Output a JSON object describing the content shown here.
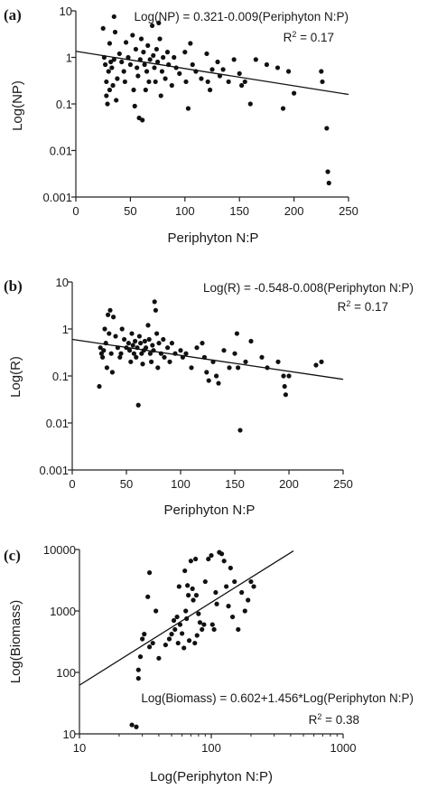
{
  "chart_data": [
    {
      "panel": "(a)",
      "type": "scatter",
      "xlabel": "Periphyton N:P",
      "ylabel": "Log(NP)",
      "xscale": "linear",
      "yscale": "log",
      "xlim": [
        0,
        250
      ],
      "ylim": [
        0.001,
        10
      ],
      "xticks": [
        "0",
        "50",
        "100",
        "150",
        "200",
        "250"
      ],
      "xtick_values": [
        0,
        50,
        100,
        150,
        200,
        250
      ],
      "yticks": [
        "0.001",
        "0.01",
        "0.1",
        "1",
        "10"
      ],
      "ytick_values": [
        0.001,
        0.01,
        0.1,
        1,
        10
      ],
      "equation": "Log(NP) = 0.321-0.009(Periphyton N:P)",
      "r2_prefix": "R",
      "r2_sup": "2",
      "r2_value": " = 0.17",
      "fit_line": {
        "x": [
          0,
          250
        ],
        "y": [
          1.35,
          0.16
        ]
      },
      "points": [
        [
          25,
          4.2
        ],
        [
          26,
          1.0
        ],
        [
          27,
          0.7
        ],
        [
          28,
          0.3
        ],
        [
          28,
          0.15
        ],
        [
          29,
          0.1
        ],
        [
          30,
          0.5
        ],
        [
          31,
          2.0
        ],
        [
          31,
          0.2
        ],
        [
          32,
          0.8
        ],
        [
          33,
          0.6
        ],
        [
          34,
          0.25
        ],
        [
          35,
          7.5
        ],
        [
          35,
          0.9
        ],
        [
          36,
          3.5
        ],
        [
          37,
          0.12
        ],
        [
          38,
          0.35
        ],
        [
          40,
          1.2
        ],
        [
          42,
          0.8
        ],
        [
          44,
          0.5
        ],
        [
          45,
          0.3
        ],
        [
          46,
          2.1
        ],
        [
          48,
          1.0
        ],
        [
          50,
          0.7
        ],
        [
          52,
          3.0
        ],
        [
          53,
          0.2
        ],
        [
          54,
          0.09
        ],
        [
          55,
          1.5
        ],
        [
          56,
          0.6
        ],
        [
          57,
          0.4
        ],
        [
          58,
          0.05
        ],
        [
          59,
          0.9
        ],
        [
          60,
          2.5
        ],
        [
          61,
          0.045
        ],
        [
          62,
          1.3
        ],
        [
          63,
          0.7
        ],
        [
          64,
          0.2
        ],
        [
          65,
          0.5
        ],
        [
          66,
          1.8
        ],
        [
          67,
          0.3
        ],
        [
          68,
          0.9
        ],
        [
          70,
          4.8
        ],
        [
          71,
          1.1
        ],
        [
          72,
          0.6
        ],
        [
          73,
          0.3
        ],
        [
          74,
          1.5
        ],
        [
          75,
          0.8
        ],
        [
          76,
          5.5
        ],
        [
          77,
          2.5
        ],
        [
          78,
          0.15
        ],
        [
          79,
          0.5
        ],
        [
          80,
          1.0
        ],
        [
          82,
          0.35
        ],
        [
          84,
          1.3
        ],
        [
          85,
          0.7
        ],
        [
          88,
          0.25
        ],
        [
          90,
          1.0
        ],
        [
          92,
          0.6
        ],
        [
          95,
          0.45
        ],
        [
          100,
          1.3
        ],
        [
          101,
          0.3
        ],
        [
          103,
          0.08
        ],
        [
          105,
          2.0
        ],
        [
          107,
          0.7
        ],
        [
          110,
          0.5
        ],
        [
          115,
          0.35
        ],
        [
          120,
          1.2
        ],
        [
          121,
          0.3
        ],
        [
          123,
          0.2
        ],
        [
          125,
          0.55
        ],
        [
          130,
          0.8
        ],
        [
          132,
          0.4
        ],
        [
          135,
          0.55
        ],
        [
          140,
          0.3
        ],
        [
          145,
          0.9
        ],
        [
          150,
          0.45
        ],
        [
          152,
          0.25
        ],
        [
          155,
          0.3
        ],
        [
          160,
          0.1
        ],
        [
          165,
          0.9
        ],
        [
          175,
          0.7
        ],
        [
          185,
          0.6
        ],
        [
          190,
          0.08
        ],
        [
          195,
          0.5
        ],
        [
          200,
          0.17
        ],
        [
          225,
          0.5
        ],
        [
          226,
          0.3
        ],
        [
          230,
          0.03
        ],
        [
          231,
          0.0035
        ],
        [
          232,
          0.002
        ]
      ]
    },
    {
      "panel": "(b)",
      "type": "scatter",
      "xlabel": "Periphyton N:P",
      "ylabel": "Log(R)",
      "xscale": "linear",
      "yscale": "log",
      "xlim": [
        0,
        250
      ],
      "ylim": [
        0.001,
        10
      ],
      "xticks": [
        "0",
        "50",
        "100",
        "150",
        "200",
        "250"
      ],
      "xtick_values": [
        0,
        50,
        100,
        150,
        200,
        250
      ],
      "yticks": [
        "0.001",
        "0.01",
        "0.1",
        "1",
        "10"
      ],
      "ytick_values": [
        0.001,
        0.01,
        0.1,
        1,
        10
      ],
      "equation": "Log(R) = -0.548-0.008(Periphyton N:P)",
      "r2_prefix": "R",
      "r2_sup": "2",
      "r2_value": " = 0.17",
      "fit_line": {
        "x": [
          0,
          250
        ],
        "y": [
          0.6,
          0.085
        ]
      },
      "points": [
        [
          25,
          0.06
        ],
        [
          26,
          0.4
        ],
        [
          27,
          0.3
        ],
        [
          28,
          0.25
        ],
        [
          29,
          0.35
        ],
        [
          30,
          1.0
        ],
        [
          31,
          0.5
        ],
        [
          32,
          0.15
        ],
        [
          33,
          2.0
        ],
        [
          34,
          0.8
        ],
        [
          35,
          2.5
        ],
        [
          36,
          0.3
        ],
        [
          37,
          0.12
        ],
        [
          38,
          1.8
        ],
        [
          40,
          0.7
        ],
        [
          42,
          0.4
        ],
        [
          44,
          0.25
        ],
        [
          45,
          0.3
        ],
        [
          46,
          1.0
        ],
        [
          48,
          0.6
        ],
        [
          50,
          0.4
        ],
        [
          52,
          0.5
        ],
        [
          53,
          0.35
        ],
        [
          54,
          0.2
        ],
        [
          55,
          0.8
        ],
        [
          56,
          0.45
        ],
        [
          57,
          0.3
        ],
        [
          58,
          0.55
        ],
        [
          59,
          0.25
        ],
        [
          60,
          0.4
        ],
        [
          61,
          0.024
        ],
        [
          62,
          0.7
        ],
        [
          63,
          0.5
        ],
        [
          64,
          0.3
        ],
        [
          65,
          0.18
        ],
        [
          66,
          0.35
        ],
        [
          67,
          0.55
        ],
        [
          68,
          0.4
        ],
        [
          70,
          1.2
        ],
        [
          71,
          0.6
        ],
        [
          72,
          0.3
        ],
        [
          73,
          0.2
        ],
        [
          74,
          0.45
        ],
        [
          75,
          0.35
        ],
        [
          76,
          3.8
        ],
        [
          77,
          2.5
        ],
        [
          78,
          0.8
        ],
        [
          79,
          0.15
        ],
        [
          80,
          0.5
        ],
        [
          82,
          0.3
        ],
        [
          84,
          0.6
        ],
        [
          85,
          0.25
        ],
        [
          88,
          0.4
        ],
        [
          90,
          0.2
        ],
        [
          92,
          0.5
        ],
        [
          95,
          0.3
        ],
        [
          100,
          0.35
        ],
        [
          102,
          0.25
        ],
        [
          105,
          0.3
        ],
        [
          110,
          0.15
        ],
        [
          115,
          0.4
        ],
        [
          120,
          0.5
        ],
        [
          122,
          0.25
        ],
        [
          124,
          0.12
        ],
        [
          126,
          0.08
        ],
        [
          130,
          0.2
        ],
        [
          133,
          0.1
        ],
        [
          135,
          0.07
        ],
        [
          140,
          0.35
        ],
        [
          145,
          0.15
        ],
        [
          150,
          0.3
        ],
        [
          152,
          0.8
        ],
        [
          153,
          0.15
        ],
        [
          155,
          0.007
        ],
        [
          160,
          0.2
        ],
        [
          165,
          0.55
        ],
        [
          175,
          0.25
        ],
        [
          180,
          0.15
        ],
        [
          190,
          0.2
        ],
        [
          195,
          0.1
        ],
        [
          196,
          0.06
        ],
        [
          197,
          0.04
        ],
        [
          200,
          0.1
        ],
        [
          225,
          0.17
        ],
        [
          230,
          0.2
        ]
      ]
    },
    {
      "panel": "(c)",
      "type": "scatter",
      "xlabel": "Log(Periphyton N:P)",
      "ylabel": "Log(Biomass)",
      "xscale": "log",
      "yscale": "log",
      "xlim": [
        10,
        1000
      ],
      "ylim": [
        10,
        10000
      ],
      "xticks": [
        "10",
        "100",
        "1000"
      ],
      "xtick_values": [
        10,
        100,
        1000
      ],
      "yticks": [
        "10",
        "100",
        "1000",
        "10000"
      ],
      "ytick_values": [
        10,
        100,
        1000,
        10000
      ],
      "equation": "Log(Biomass) = 0.602+1.456*Log(Periphyton N:P)",
      "r2_prefix": "R",
      "r2_sup": "2",
      "r2_value": " = 0.38",
      "fit_line": {
        "x": [
          10,
          420
        ],
        "y": [
          62,
          9500
        ]
      },
      "points": [
        [
          25,
          14
        ],
        [
          27,
          13
        ],
        [
          28,
          110
        ],
        [
          28,
          80
        ],
        [
          29,
          180
        ],
        [
          30,
          350
        ],
        [
          31,
          420
        ],
        [
          33,
          1700
        ],
        [
          34,
          4200
        ],
        [
          34,
          260
        ],
        [
          36,
          300
        ],
        [
          38,
          1000
        ],
        [
          40,
          170
        ],
        [
          45,
          280
        ],
        [
          48,
          350
        ],
        [
          50,
          420
        ],
        [
          52,
          700
        ],
        [
          53,
          500
        ],
        [
          55,
          800
        ],
        [
          56,
          300
        ],
        [
          57,
          2500
        ],
        [
          58,
          600
        ],
        [
          60,
          430
        ],
        [
          62,
          250
        ],
        [
          63,
          4500
        ],
        [
          64,
          1000
        ],
        [
          65,
          750
        ],
        [
          66,
          2600
        ],
        [
          67,
          1800
        ],
        [
          68,
          330
        ],
        [
          70,
          6500
        ],
        [
          72,
          2300
        ],
        [
          73,
          1500
        ],
        [
          75,
          300
        ],
        [
          76,
          7000
        ],
        [
          77,
          1800
        ],
        [
          78,
          400
        ],
        [
          80,
          900
        ],
        [
          82,
          650
        ],
        [
          85,
          500
        ],
        [
          88,
          600
        ],
        [
          90,
          3000
        ],
        [
          95,
          7000
        ],
        [
          100,
          8000
        ],
        [
          102,
          600
        ],
        [
          105,
          500
        ],
        [
          108,
          2000
        ],
        [
          110,
          1300
        ],
        [
          115,
          9000
        ],
        [
          120,
          8500
        ],
        [
          125,
          6500
        ],
        [
          130,
          2500
        ],
        [
          135,
          1200
        ],
        [
          140,
          5000
        ],
        [
          145,
          800
        ],
        [
          150,
          3000
        ],
        [
          160,
          500
        ],
        [
          170,
          2000
        ],
        [
          180,
          1000
        ],
        [
          190,
          1500
        ],
        [
          200,
          3000
        ],
        [
          210,
          2500
        ]
      ]
    }
  ]
}
